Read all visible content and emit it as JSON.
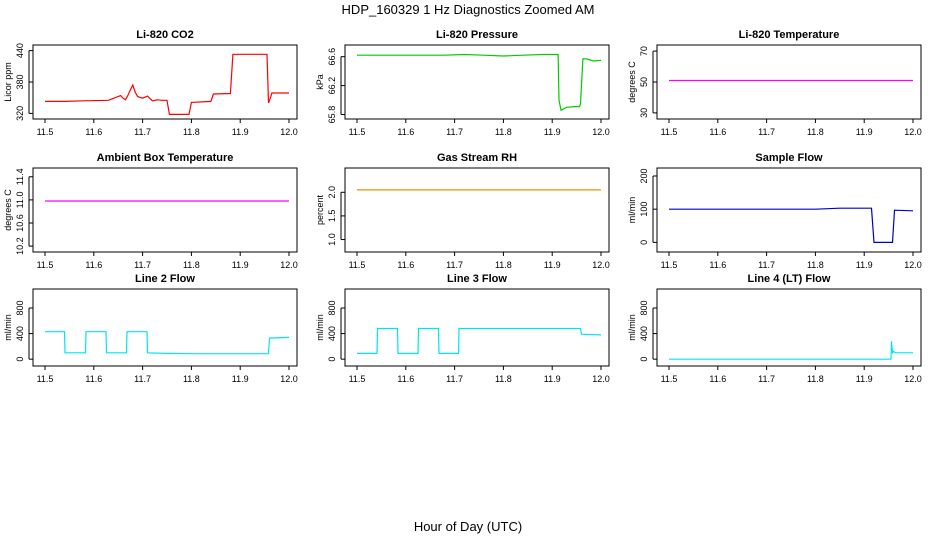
{
  "title": "HDP_160329  1 Hz Diagnostics Zoomed AM",
  "xlabel": "Hour of Day (UTC)",
  "chart_data": [
    {
      "type": "line",
      "title": "Li-820 CO2",
      "ylabel": "Licor ppm",
      "color": "#ff0000",
      "xlim": [
        11.5,
        12.0
      ],
      "ylim": [
        315,
        445
      ],
      "yticks": [
        320,
        380,
        440
      ],
      "xticks": [
        11.5,
        11.6,
        11.7,
        11.8,
        11.9,
        12.0
      ],
      "series": [
        {
          "x": [
            11.5,
            11.54,
            11.58,
            11.63,
            11.655,
            11.66,
            11.665,
            11.67,
            11.675,
            11.68,
            11.685,
            11.69,
            11.7,
            11.71,
            11.72,
            11.73,
            11.74,
            11.75,
            11.755,
            11.795,
            11.8,
            11.84,
            11.845,
            11.88,
            11.885,
            11.955,
            11.958,
            11.962,
            11.965,
            12.0
          ],
          "y": [
            343,
            343,
            344,
            345,
            354,
            349,
            346,
            355,
            365,
            374,
            360,
            352,
            349,
            353,
            344,
            346,
            345,
            345,
            318,
            318,
            341,
            343,
            357,
            358,
            433,
            433,
            340,
            350,
            359,
            359
          ]
        }
      ]
    },
    {
      "type": "line",
      "title": "Li-820 Pressure",
      "ylabel": "kPa",
      "color": "#00cc00",
      "xlim": [
        11.5,
        12.0
      ],
      "ylim": [
        65.78,
        66.72
      ],
      "yticks": [
        65.8,
        66.2,
        66.6
      ],
      "xticks": [
        11.5,
        11.6,
        11.7,
        11.8,
        11.9,
        12.0
      ],
      "series": [
        {
          "x": [
            11.5,
            11.6,
            11.68,
            11.72,
            11.76,
            11.8,
            11.84,
            11.88,
            11.912,
            11.914,
            11.918,
            11.93,
            11.945,
            11.956,
            11.958,
            11.963,
            11.97,
            11.985,
            12.0
          ],
          "y": [
            66.62,
            66.62,
            66.62,
            66.63,
            66.62,
            66.61,
            66.62,
            66.63,
            66.63,
            66.0,
            65.86,
            65.9,
            65.91,
            65.91,
            65.95,
            66.57,
            66.57,
            66.54,
            66.55
          ]
        }
      ]
    },
    {
      "type": "line",
      "title": "Li-820 Temperature",
      "ylabel": "degrees C",
      "color": "#ff00ff",
      "xlim": [
        11.5,
        12.0
      ],
      "ylim": [
        28,
        72
      ],
      "yticks": [
        30,
        50,
        70
      ],
      "xticks": [
        11.5,
        11.6,
        11.7,
        11.8,
        11.9,
        12.0
      ],
      "series": [
        {
          "x": [
            11.5,
            12.0
          ],
          "y": [
            51,
            51
          ]
        }
      ]
    },
    {
      "type": "line",
      "title": "Ambient Box Temperature",
      "ylabel": "degrees C",
      "color": "#ff00ff",
      "xlim": [
        11.5,
        12.0
      ],
      "ylim": [
        10.15,
        11.5
      ],
      "yticks": [
        10.2,
        10.6,
        11.0,
        11.4
      ],
      "xticks": [
        11.5,
        11.6,
        11.7,
        11.8,
        11.9,
        12.0
      ],
      "series": [
        {
          "x": [
            11.5,
            12.0
          ],
          "y": [
            10.98,
            10.98
          ]
        }
      ]
    },
    {
      "type": "line",
      "title": "Gas Stream RH",
      "ylabel": "percent",
      "color": "#e69500",
      "xlim": [
        11.5,
        12.0
      ],
      "ylim": [
        0.8,
        2.45
      ],
      "yticks": [
        1.0,
        1.5,
        2.0
      ],
      "xticks": [
        11.5,
        11.6,
        11.7,
        11.8,
        11.9,
        12.0
      ],
      "series": [
        {
          "x": [
            11.5,
            12.0
          ],
          "y": [
            2.05,
            2.05
          ]
        }
      ]
    },
    {
      "type": "line",
      "title": "Sample Flow",
      "ylabel": "ml/min",
      "color": "#0000cc",
      "xlim": [
        11.5,
        12.0
      ],
      "ylim": [
        -20,
        215
      ],
      "yticks": [
        0,
        100,
        200
      ],
      "xticks": [
        11.5,
        11.6,
        11.7,
        11.8,
        11.9,
        12.0
      ],
      "series": [
        {
          "x": [
            11.5,
            11.6,
            11.7,
            11.8,
            11.85,
            11.915,
            11.92,
            11.958,
            11.962,
            12.0
          ],
          "y": [
            100,
            100,
            100,
            100,
            103,
            103,
            0,
            0,
            97,
            95
          ]
        }
      ]
    },
    {
      "type": "line",
      "title": "Line 2 Flow",
      "ylabel": "ml/min",
      "color": "#00e5ee",
      "xlim": [
        11.5,
        12.0
      ],
      "ylim": [
        -60,
        1050
      ],
      "yticks": [
        0,
        400,
        800
      ],
      "xticks": [
        11.5,
        11.6,
        11.7,
        11.8,
        11.9,
        12.0
      ],
      "series": [
        {
          "x": [
            11.5,
            11.54,
            11.541,
            11.583,
            11.584,
            11.625,
            11.626,
            11.667,
            11.668,
            11.709,
            11.71,
            11.75,
            11.8,
            11.9,
            11.958,
            11.96,
            12.0
          ],
          "y": [
            430,
            430,
            100,
            100,
            430,
            430,
            100,
            100,
            430,
            430,
            100,
            90,
            85,
            85,
            85,
            330,
            340
          ]
        }
      ]
    },
    {
      "type": "line",
      "title": "Line 3 Flow",
      "ylabel": "ml/min",
      "color": "#00e5ee",
      "xlim": [
        11.5,
        12.0
      ],
      "ylim": [
        -60,
        1050
      ],
      "yticks": [
        0,
        400,
        800
      ],
      "xticks": [
        11.5,
        11.6,
        11.7,
        11.8,
        11.9,
        12.0
      ],
      "series": [
        {
          "x": [
            11.5,
            11.541,
            11.542,
            11.583,
            11.584,
            11.625,
            11.626,
            11.667,
            11.668,
            11.708,
            11.709,
            11.958,
            11.96,
            12.0
          ],
          "y": [
            90,
            90,
            480,
            480,
            90,
            90,
            480,
            480,
            90,
            90,
            480,
            480,
            390,
            380
          ]
        }
      ]
    },
    {
      "type": "line",
      "title": "Line 4 (LT) Flow",
      "ylabel": "ml/min",
      "color": "#00e5ee",
      "xlim": [
        11.5,
        12.0
      ],
      "ylim": [
        -60,
        1050
      ],
      "yticks": [
        0,
        400,
        800
      ],
      "xticks": [
        11.5,
        11.6,
        11.7,
        11.8,
        11.9,
        12.0
      ],
      "series": [
        {
          "x": [
            11.5,
            11.7,
            11.9,
            11.955,
            11.956,
            11.958,
            11.96,
            11.965,
            12.0
          ],
          "y": [
            0,
            0,
            0,
            0,
            280,
            100,
            120,
            100,
            100
          ]
        }
      ]
    }
  ]
}
